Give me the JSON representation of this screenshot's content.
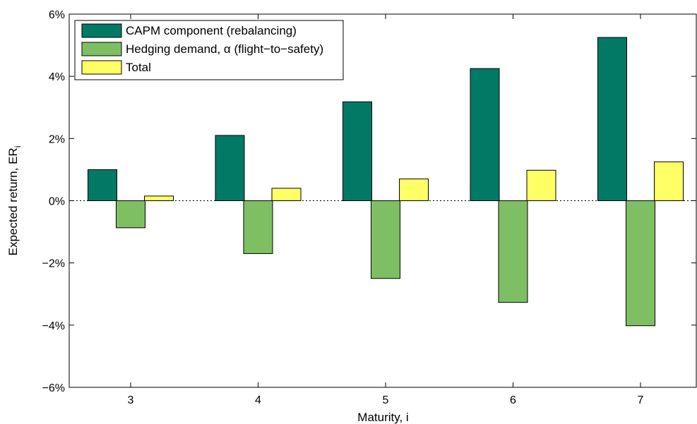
{
  "chart_data": {
    "type": "bar",
    "title": "",
    "xlabel": "Maturity, i",
    "ylabel_main": "Expected return, ER",
    "ylabel_subscript": "i",
    "categories": [
      "3",
      "4",
      "5",
      "6",
      "7"
    ],
    "series": [
      {
        "name": "CAPM component (rebalancing)",
        "color": "#007A65",
        "values": [
          1.0,
          2.1,
          3.18,
          4.25,
          5.25
        ]
      },
      {
        "name": "Hedging demand, α (flight−to−safety)",
        "color": "#7FBF63",
        "values": [
          -0.87,
          -1.7,
          -2.5,
          -3.27,
          -4.02
        ]
      },
      {
        "name": "Total",
        "color": "#FFFF66",
        "values": [
          0.15,
          0.4,
          0.7,
          0.98,
          1.25
        ]
      }
    ],
    "ylim": [
      -6,
      6
    ],
    "yticks": [
      -6,
      -4,
      -2,
      0,
      2,
      4,
      6
    ],
    "ytick_labels": [
      "−6%",
      "−4%",
      "−2%",
      "0%",
      "2%",
      "4%",
      "6%"
    ],
    "zero_line": "dotted",
    "grid": false,
    "legend_position": "top-left"
  }
}
